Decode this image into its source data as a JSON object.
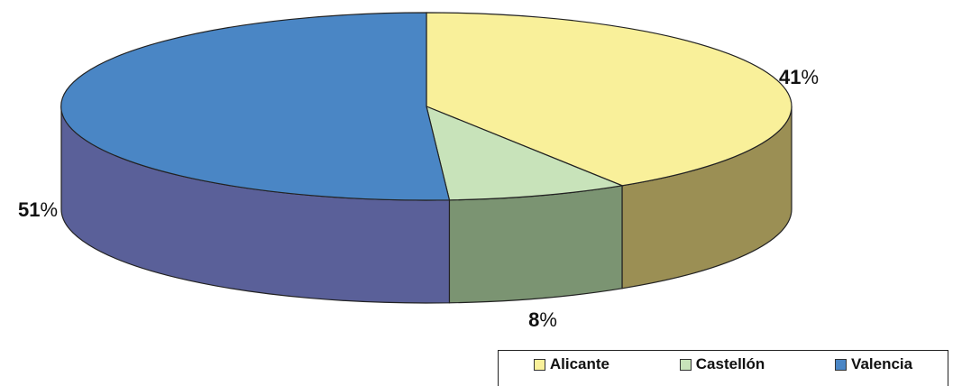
{
  "chart_data": {
    "type": "pie",
    "categories": [
      "Alicante",
      "Castellón",
      "Valencia"
    ],
    "values": [
      41,
      8,
      51
    ],
    "labels": [
      "41",
      "8",
      "51"
    ],
    "unit": "%",
    "legend_position": "bottom-right",
    "colors": {
      "top": [
        "#f9f09a",
        "#c8e3ba",
        "#4a86c5"
      ],
      "side": [
        "#9b8f54",
        "#7b9472",
        "#5a6099"
      ],
      "edge": "#222222"
    }
  }
}
